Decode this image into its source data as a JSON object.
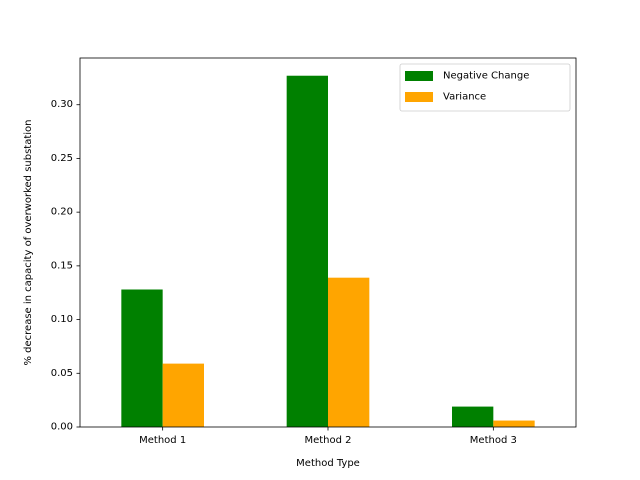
{
  "chart_data": {
    "type": "bar",
    "title": "",
    "xlabel": "Method Type",
    "ylabel": "% decrease in capacity of overworked substation",
    "categories": [
      "Method 1",
      "Method 2",
      "Method 3"
    ],
    "series": [
      {
        "name": "Negative Change",
        "color": "#008000",
        "values": [
          0.128,
          0.327,
          0.019
        ]
      },
      {
        "name": "Variance",
        "color": "#FFA500",
        "values": [
          0.059,
          0.139,
          0.006
        ]
      }
    ],
    "ylim": [
      0,
      0.3435
    ],
    "yticks": [
      "0.00",
      "0.05",
      "0.10",
      "0.15",
      "0.20",
      "0.25",
      "0.30"
    ],
    "grid": false,
    "legend_position": "top-right"
  }
}
